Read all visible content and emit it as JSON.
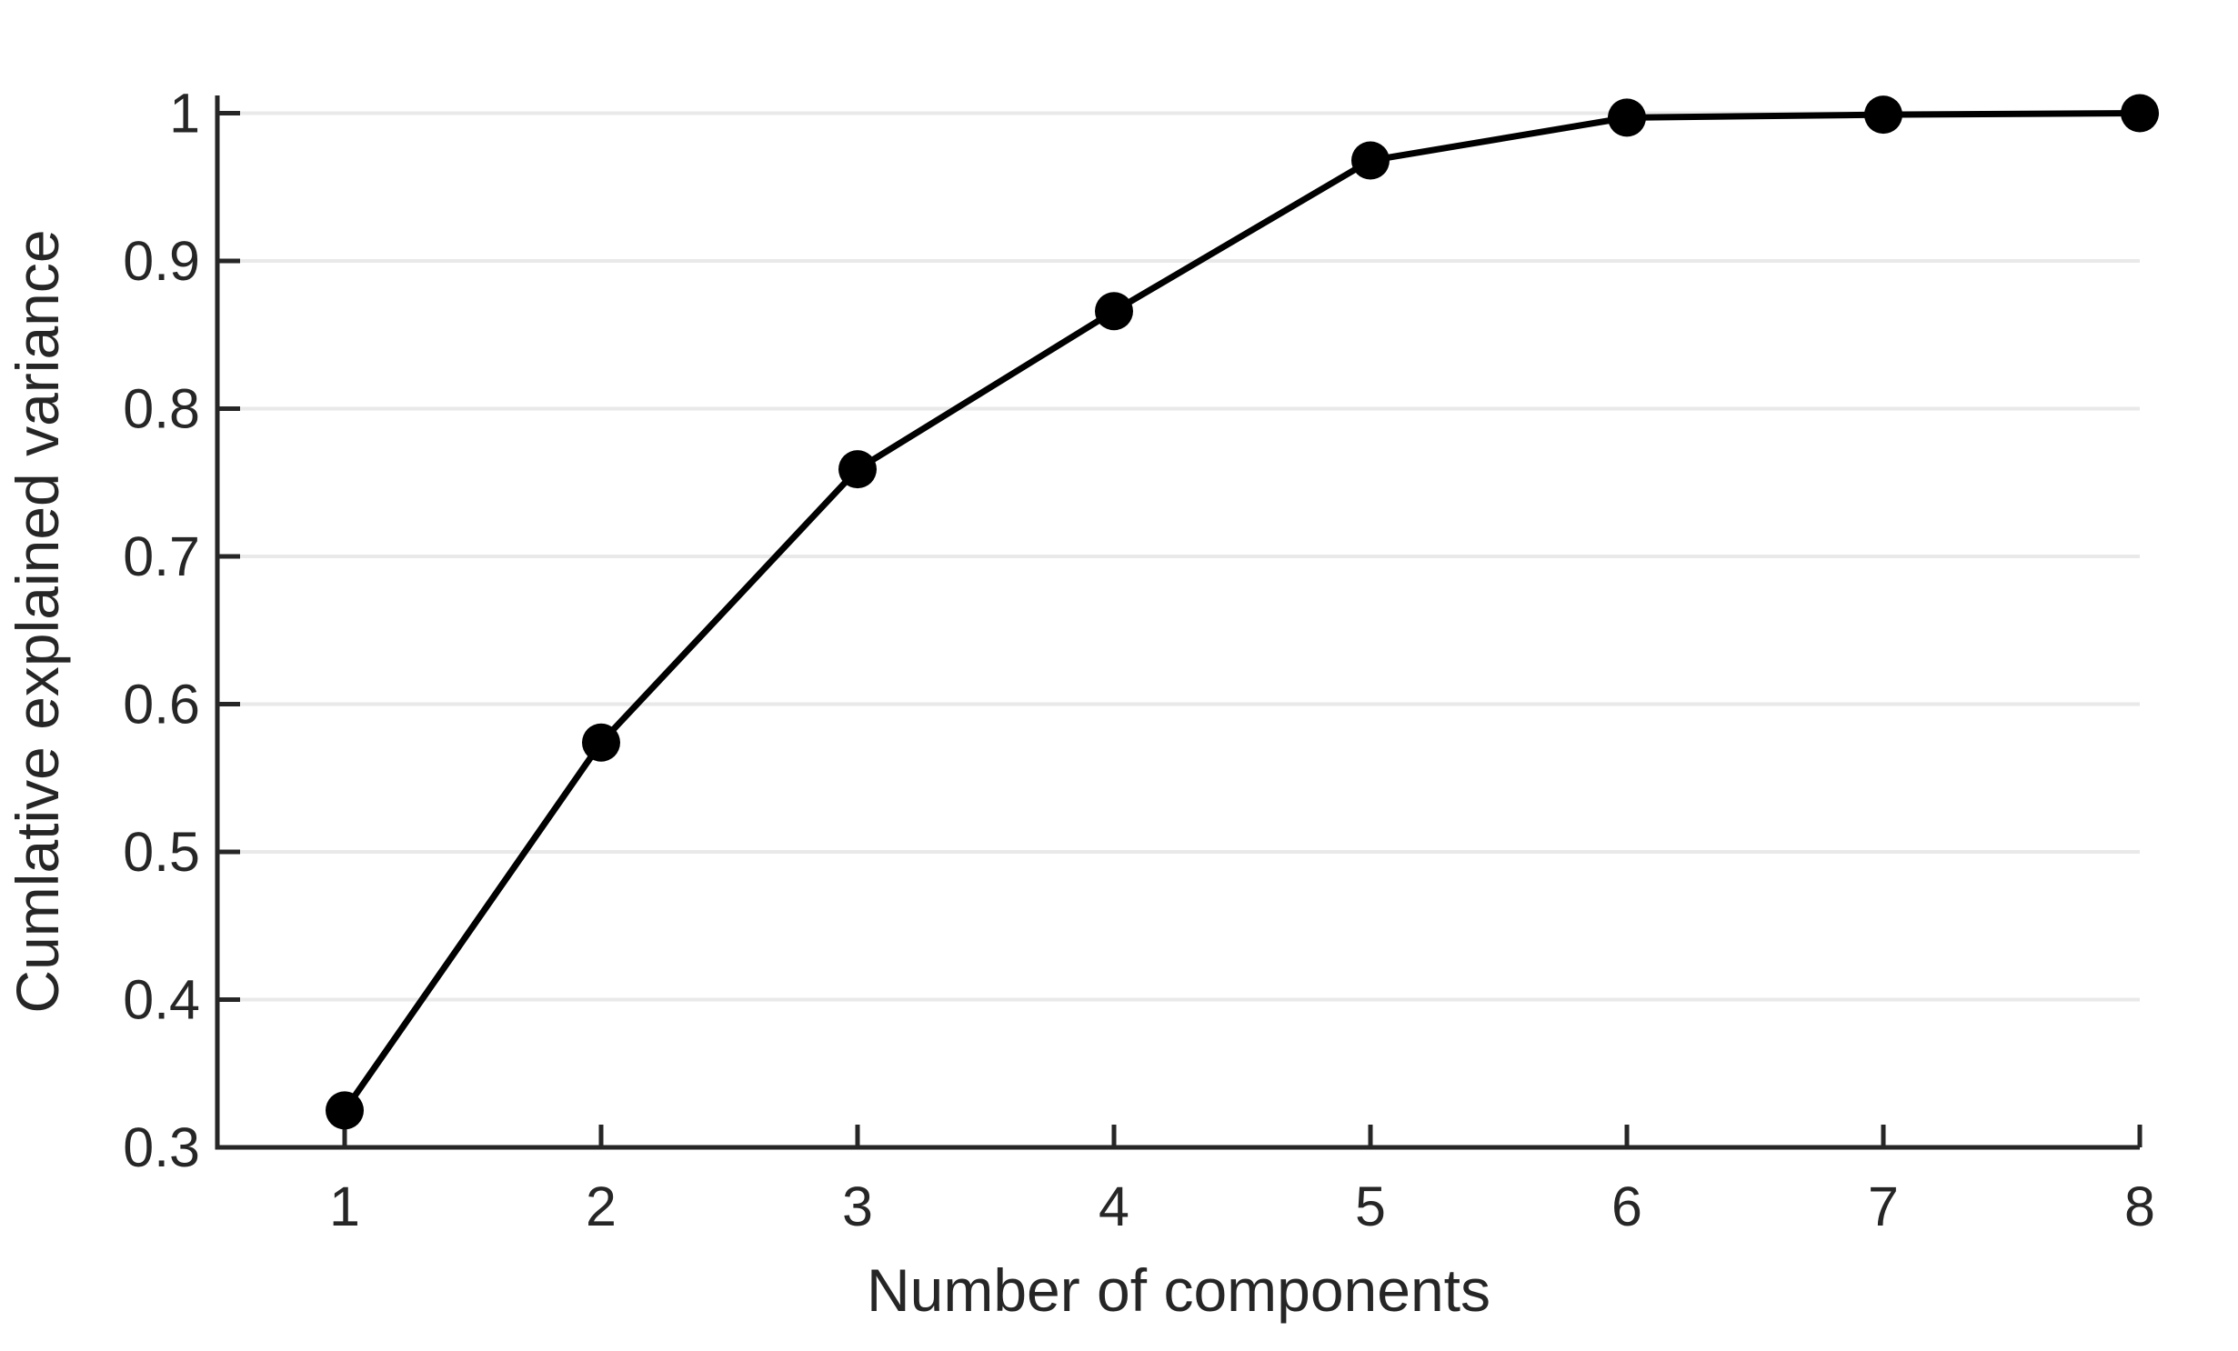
{
  "chart_data": {
    "type": "line",
    "title": "",
    "xlabel": "Number of components",
    "ylabel": "Cumlative explained variance",
    "x": [
      1,
      2,
      3,
      4,
      5,
      6,
      7,
      8
    ],
    "series": [
      {
        "name": "cumulative-explained-variance",
        "values": [
          0.325,
          0.574,
          0.759,
          0.866,
          0.968,
          0.997,
          0.999,
          1.0
        ]
      }
    ],
    "xticks": [
      1,
      2,
      3,
      4,
      5,
      6,
      7,
      8
    ],
    "xtick_labels": [
      "1",
      "2",
      "3",
      "4",
      "5",
      "6",
      "7",
      "8"
    ],
    "yticks": [
      0.3,
      0.4,
      0.5,
      0.6,
      0.7,
      0.8,
      0.9,
      1.0
    ],
    "ytick_labels": [
      "0.3",
      "0.4",
      "0.5",
      "0.6",
      "0.7",
      "0.8",
      "0.9",
      "1"
    ],
    "xlim": [
      0.5,
      8
    ],
    "ylim": [
      0.3,
      1.012
    ],
    "grid": "horizontal-only",
    "legend": "none",
    "colors": {
      "line": "#000000",
      "marker": "#000000",
      "grid": "#e9e9e9",
      "axis": "#262626",
      "text": "#262626",
      "background": "#ffffff"
    },
    "marker": "filled-circle",
    "line_width": 7,
    "marker_radius": 21
  }
}
